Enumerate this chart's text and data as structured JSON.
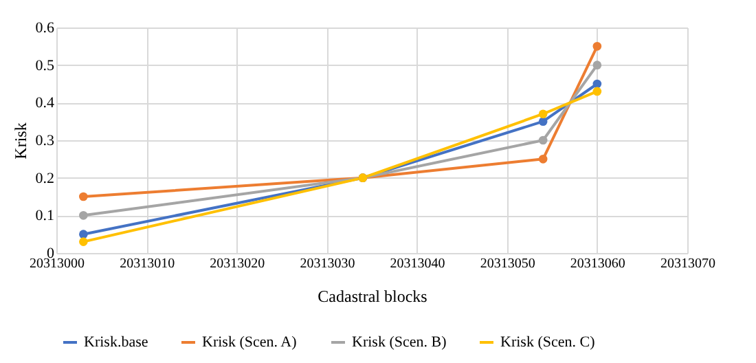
{
  "chart_data": {
    "type": "line",
    "xlabel": "Cadastral blocks",
    "ylabel": "Krisk",
    "x": [
      20313003,
      20313034,
      20313054,
      20313060
    ],
    "series": [
      {
        "name": "Krisk.base",
        "color": "#4472c4",
        "values": [
          0.05,
          0.2,
          0.35,
          0.45
        ]
      },
      {
        "name": "Krisk (Scen. A)",
        "color": "#ed7d31",
        "values": [
          0.15,
          0.2,
          0.25,
          0.55
        ]
      },
      {
        "name": "Krisk (Scen. B)",
        "color": "#a5a5a5",
        "values": [
          0.1,
          0.2,
          0.3,
          0.5
        ]
      },
      {
        "name": "Krisk (Scen. C)",
        "color": "#ffc000",
        "values": [
          0.03,
          0.2,
          0.37,
          0.43
        ]
      }
    ],
    "xlim": [
      20313000,
      20313070
    ],
    "xticks": [
      20313000,
      20313010,
      20313020,
      20313030,
      20313040,
      20313050,
      20313060,
      20313070
    ],
    "ylim": [
      0,
      0.6
    ],
    "yticks": [
      0,
      0.1,
      0.2,
      0.3,
      0.4,
      0.5,
      0.6
    ],
    "grid": true,
    "legend": "bottom",
    "marker": "circle",
    "line_style": "solid"
  }
}
